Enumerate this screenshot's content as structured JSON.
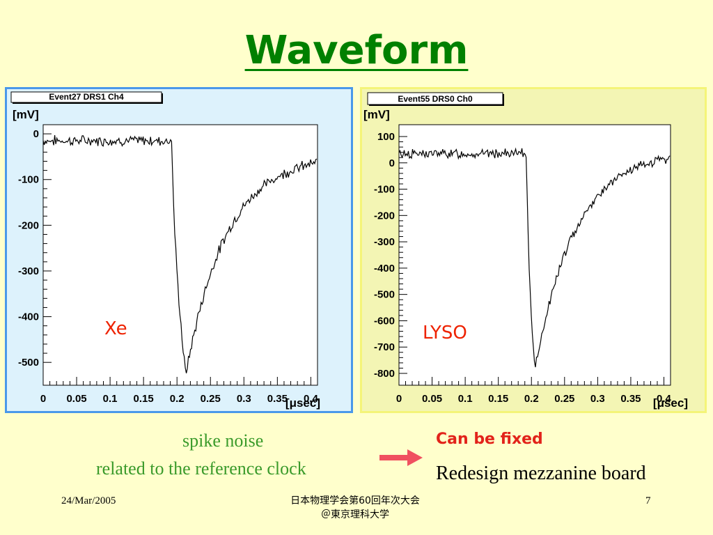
{
  "slide": {
    "title": "Waveform",
    "notes": {
      "spike": "spike noise",
      "clock": "related to the reference clock",
      "fixed": "Can be fixed",
      "redesign": "Redesign mezzanine board"
    },
    "footer": {
      "date": "24/Mar/2005",
      "conference_line1": "日本物理学会第60回年次大会",
      "conference_line2": "＠東京理科大学",
      "page": "7"
    },
    "colors": {
      "title": "#008000",
      "panel_left_bg": "#ddf2fc",
      "panel_left_border": "#4a98ea",
      "panel_right_bg": "#f3f5b4",
      "panel_right_border": "#f4f478",
      "label": "#ee2200",
      "arrow": "#f05060",
      "notes_green": "#3a9a2a",
      "can_be_fixed": "#e2231a"
    },
    "icons": [
      "right-arrow-icon"
    ]
  },
  "chart_data": [
    {
      "type": "line",
      "hist_title": "Event27 DRS1 Ch4",
      "label": "Xe",
      "ylabel": "[mV]",
      "xlabel": "[μsec]",
      "xlim": [
        0,
        0.41
      ],
      "ylim": [
        -550,
        20
      ],
      "xticks": [
        0,
        0.05,
        0.1,
        0.15,
        0.2,
        0.25,
        0.3,
        0.35,
        0.4
      ],
      "yticks": [
        0,
        -100,
        -200,
        -300,
        -400,
        -500
      ],
      "xtick_labels": [
        "0",
        "0.05",
        "0.1",
        "0.15",
        "0.2",
        "0.25",
        "0.3",
        "0.35",
        "0.4"
      ],
      "ytick_labels": [
        "0",
        "-100",
        "-200",
        "-300",
        "-400",
        "-500"
      ],
      "grid": false,
      "waveform": {
        "baseline": -15,
        "edge_x": 0.193,
        "min_x": 0.213,
        "min_y": -528,
        "tail_end_y": -45,
        "noise_amplitude": 9
      }
    },
    {
      "type": "line",
      "hist_title": "Event55 DRS0 Ch0",
      "label": "LYSO",
      "ylabel": "[mV]",
      "xlabel": "[μsec]",
      "xlim": [
        0,
        0.41
      ],
      "ylim": [
        -845,
        145
      ],
      "xticks": [
        0,
        0.05,
        0.1,
        0.15,
        0.2,
        0.25,
        0.3,
        0.35,
        0.4
      ],
      "yticks": [
        100,
        0,
        -100,
        -200,
        -300,
        -400,
        -500,
        -600,
        -700,
        -800
      ],
      "xtick_labels": [
        "0",
        "0.05",
        "0.1",
        "0.15",
        "0.2",
        "0.25",
        "0.3",
        "0.35",
        "0.4"
      ],
      "ytick_labels": [
        "100",
        "0",
        "-100",
        "-200",
        "-300",
        "-400",
        "-500",
        "-600",
        "-700",
        "-800"
      ],
      "grid": false,
      "waveform": {
        "baseline": 35,
        "edge_x": 0.193,
        "min_x": 0.205,
        "min_y": -790,
        "tail_end_y": 45,
        "noise_amplitude": 14
      }
    }
  ]
}
